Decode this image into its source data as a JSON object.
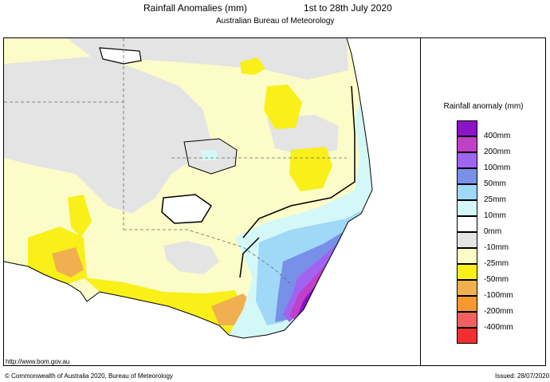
{
  "header": {
    "title": "Rainfall Anomalies (mm)",
    "period": "1st to 28th July 2020",
    "subtitle": "Australian Bureau of Meteorology"
  },
  "legend": {
    "title": "Rainfall anomaly (mm)",
    "swatches": [
      {
        "color": "#8b14c8",
        "label": "400mm"
      },
      {
        "color": "#c040c8",
        "label": "200mm"
      },
      {
        "color": "#a064f0",
        "label": "100mm"
      },
      {
        "color": "#7890e8",
        "label": "50mm"
      },
      {
        "color": "#a0d8f8",
        "label": "25mm"
      },
      {
        "color": "#d4f8f8",
        "label": "10mm"
      },
      {
        "color": "#ffffff",
        "label": "0mm"
      },
      {
        "color": "#e4e4e4",
        "label": "-10mm"
      },
      {
        "color": "#fcfcc8",
        "label": "-25mm"
      },
      {
        "color": "#f8f018",
        "label": "-50mm"
      },
      {
        "color": "#f0b050",
        "label": "-100mm"
      },
      {
        "color": "#f89830",
        "label": "-200mm"
      },
      {
        "color": "#f06060",
        "label": "-400mm"
      },
      {
        "color": "#f03030",
        "label": ""
      }
    ]
  },
  "footer": {
    "url": "http://www.bom.gov.au",
    "copyright": "© Commonwealth of Australia 2020, Bureau of Meteorology",
    "issued": "Issued: 28/07/2020"
  }
}
